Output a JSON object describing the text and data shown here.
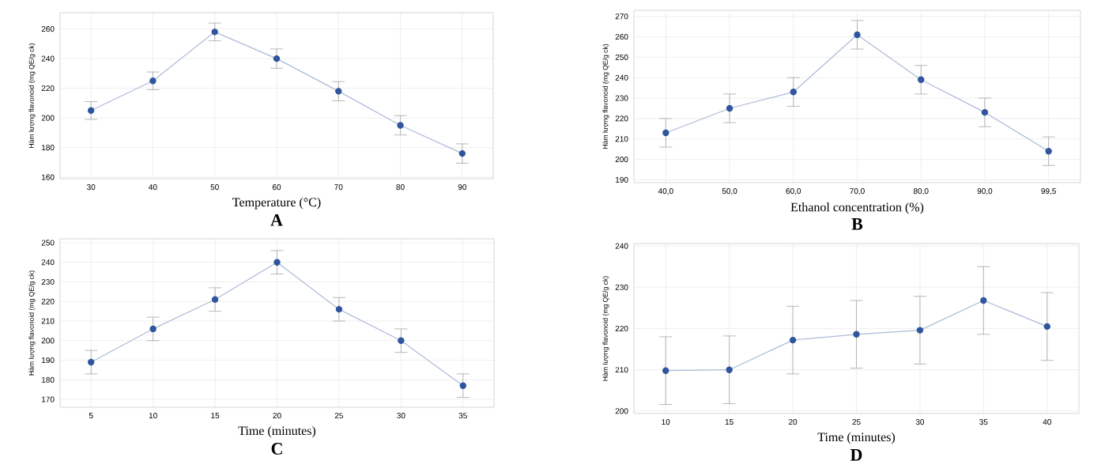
{
  "chart_data": [
    {
      "type": "line",
      "title": "A",
      "xlabel": "Temperature (°C)",
      "ylabel": "Hàm lượng flavonoid (mg QE/g ck)",
      "categories": [
        "30",
        "40",
        "50",
        "60",
        "70",
        "80",
        "90"
      ],
      "values": [
        205,
        225,
        258,
        240,
        218,
        195,
        176
      ],
      "errors": [
        6,
        6,
        6,
        6.5,
        6.5,
        6.5,
        6.5
      ],
      "color": "#2f559e",
      "ylim": [
        159,
        271
      ],
      "yticks": [
        160,
        180,
        200,
        220,
        240,
        260
      ],
      "grid": true,
      "marker": "circle"
    },
    {
      "type": "line",
      "title": "B",
      "xlabel": "Ethanol concentration (%)",
      "ylabel": "Hàm lượng flavonoid (mg QE/g ck)",
      "categories": [
        "40,0",
        "50,0",
        "60,0",
        "70,0",
        "80,0",
        "90,0",
        "99,5"
      ],
      "values": [
        213,
        225,
        233,
        261,
        239,
        223,
        204
      ],
      "errors": [
        7,
        7,
        7,
        7,
        7,
        7,
        7
      ],
      "color": "#2f559e",
      "ylim": [
        188.6,
        273
      ],
      "yticks": [
        190,
        200,
        210,
        220,
        230,
        240,
        250,
        260,
        270
      ],
      "grid": true,
      "marker": "circle"
    },
    {
      "type": "line",
      "title": "C",
      "xlabel": "Time (minutes)",
      "ylabel": "Hàm lượng flavonoid (mg QE/g ck)",
      "categories": [
        "5",
        "10",
        "15",
        "20",
        "25",
        "30",
        "35"
      ],
      "values": [
        189,
        206,
        221,
        240,
        216,
        200,
        177
      ],
      "errors": [
        6,
        6,
        6,
        6,
        6,
        6,
        6
      ],
      "color": "#2f559e",
      "ylim": [
        166,
        252
      ],
      "yticks": [
        170,
        180,
        190,
        200,
        210,
        220,
        230,
        240,
        250
      ],
      "grid": true,
      "marker": "circle"
    },
    {
      "type": "line",
      "title": "D",
      "xlabel": "Time (minutes)",
      "ylabel": "Hàm lượng flavonoid (mg QE/g ck)",
      "categories": [
        "10",
        "15",
        "20",
        "25",
        "30",
        "35",
        "40"
      ],
      "values": [
        209.8,
        210,
        217.2,
        218.6,
        219.6,
        226.8,
        220.5
      ],
      "errors": [
        8.2,
        8.2,
        8.2,
        8.2,
        8.2,
        8.2,
        8.2
      ],
      "color": "#2f559e",
      "ylim": [
        199.4,
        240.6
      ],
      "yticks": [
        200,
        210,
        220,
        230,
        240
      ],
      "grid": true,
      "marker": "circle"
    }
  ]
}
